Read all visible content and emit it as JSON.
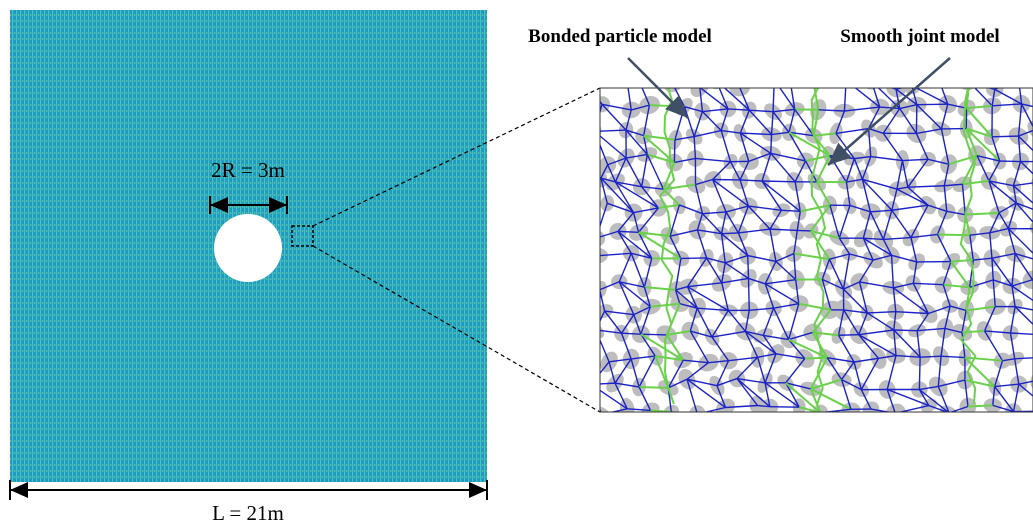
{
  "labels": {
    "diameter": "2R = 3m",
    "length": "L = 21m",
    "bonded": "Bonded particle model",
    "smooth": "Smooth joint model"
  }
}
